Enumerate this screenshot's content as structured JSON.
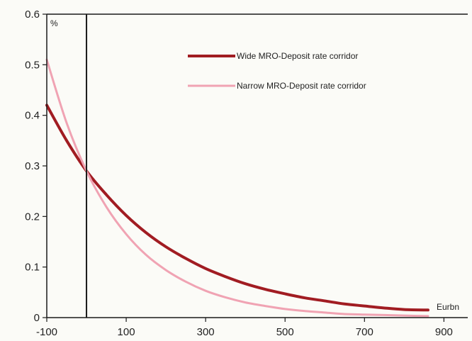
{
  "chart_data": {
    "type": "line",
    "title": "",
    "ylabel": "%",
    "xlabel": "Eurbn",
    "xlim": [
      -100,
      960
    ],
    "ylim": [
      0,
      0.6
    ],
    "x_ticks": [
      -100,
      100,
      300,
      500,
      700,
      900
    ],
    "y_ticks": [
      0,
      0.1,
      0.2,
      0.3,
      0.4,
      0.5,
      0.6
    ],
    "x_tick_labels": [
      "-100",
      "100",
      "300",
      "500",
      "700",
      "900"
    ],
    "y_tick_labels": [
      "0",
      "0.1",
      "0.2",
      "0.3",
      "0.4",
      "0.5",
      "0.6"
    ],
    "reference_line_x": 0,
    "grid": false,
    "legend_position": "top-right",
    "series": [
      {
        "name": "Wide MRO-Deposit rate corridor",
        "color": "#a11c22",
        "x": [
          -100,
          -50,
          0,
          50,
          100,
          150,
          200,
          250,
          300,
          350,
          400,
          450,
          500,
          550,
          600,
          650,
          700,
          750,
          800,
          860
        ],
        "y": [
          0.42,
          0.35,
          0.29,
          0.243,
          0.202,
          0.168,
          0.14,
          0.117,
          0.097,
          0.081,
          0.067,
          0.056,
          0.047,
          0.039,
          0.033,
          0.027,
          0.023,
          0.019,
          0.016,
          0.015
        ]
      },
      {
        "name": "Narrow MRO-Deposit rate corridor",
        "color": "#f0a3b3",
        "x": [
          -100,
          -50,
          0,
          50,
          100,
          150,
          200,
          250,
          300,
          350,
          400,
          450,
          500,
          550,
          600,
          650,
          700,
          750,
          800,
          860
        ],
        "y": [
          0.51,
          0.385,
          0.29,
          0.219,
          0.165,
          0.124,
          0.094,
          0.071,
          0.053,
          0.04,
          0.03,
          0.023,
          0.017,
          0.013,
          0.01,
          0.007,
          0.006,
          0.005,
          0.004,
          0.003
        ]
      }
    ]
  }
}
